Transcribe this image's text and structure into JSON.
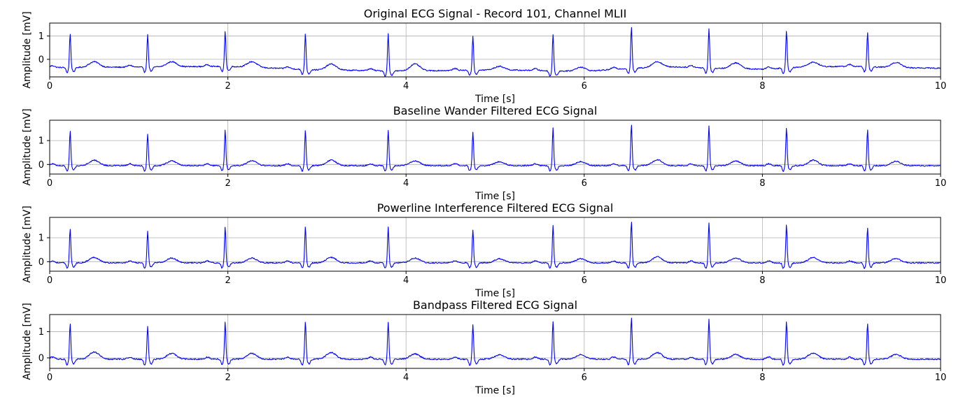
{
  "figure": {
    "line_color": "#0000ff",
    "grid_color": "#b0b0b0",
    "axes_color": "#000000"
  },
  "chart_data": [
    {
      "type": "line",
      "title": "Original ECG Signal - Record 101, Channel MLII",
      "xlabel": "Time [s]",
      "ylabel": "Amplitude [mV]",
      "xlim": [
        0,
        10
      ],
      "ylim": [
        -0.75,
        1.55
      ],
      "xticks": [
        0,
        2,
        4,
        6,
        8,
        10
      ],
      "yticks": [
        0,
        1
      ],
      "grid": true,
      "baseline": [
        [
          0,
          -0.35
        ],
        [
          1,
          -0.33
        ],
        [
          2,
          -0.3
        ],
        [
          3,
          -0.45
        ],
        [
          4,
          -0.5
        ],
        [
          5,
          -0.45
        ],
        [
          5.5,
          -0.48
        ],
        [
          6,
          -0.52
        ],
        [
          6.5,
          -0.38
        ],
        [
          7,
          -0.32
        ],
        [
          7.5,
          -0.38
        ],
        [
          8,
          -0.42
        ],
        [
          8.5,
          -0.32
        ],
        [
          9,
          -0.3
        ],
        [
          9.5,
          -0.35
        ],
        [
          10,
          -0.38
        ]
      ],
      "series": [
        {
          "r_peaks": [
            [
              0.23,
              1.1
            ],
            [
              1.1,
              1.05
            ],
            [
              1.97,
              1.2
            ],
            [
              2.87,
              1.1
            ],
            [
              3.8,
              1.1
            ],
            [
              4.75,
              1.0
            ],
            [
              5.65,
              1.07
            ],
            [
              6.53,
              1.38
            ],
            [
              7.4,
              1.32
            ],
            [
              8.27,
              1.25
            ],
            [
              9.18,
              1.15
            ]
          ],
          "t_waves": [
            [
              0.5,
              -0.1
            ],
            [
              1.37,
              -0.1
            ],
            [
              2.27,
              -0.1
            ],
            [
              3.16,
              -0.2
            ],
            [
              4.1,
              -0.2
            ],
            [
              5.05,
              -0.3
            ],
            [
              5.96,
              -0.33
            ],
            [
              6.82,
              -0.1
            ],
            [
              7.7,
              -0.15
            ],
            [
              8.57,
              -0.12
            ],
            [
              9.5,
              -0.13
            ]
          ]
        }
      ]
    },
    {
      "type": "line",
      "title": "Baseline Wander Filtered ECG Signal",
      "xlabel": "Time [s]",
      "ylabel": "Amplitude [mV]",
      "xlim": [
        0,
        10
      ],
      "ylim": [
        -0.4,
        1.85
      ],
      "xticks": [
        0,
        2,
        4,
        6,
        8,
        10
      ],
      "yticks": [
        0,
        1
      ],
      "grid": true,
      "baseline": [
        [
          0,
          -0.05
        ],
        [
          5,
          -0.05
        ],
        [
          10,
          -0.05
        ]
      ],
      "series": [
        {
          "r_peaks": [
            [
              0.23,
              1.4
            ],
            [
              1.1,
              1.3
            ],
            [
              1.97,
              1.45
            ],
            [
              2.87,
              1.45
            ],
            [
              3.8,
              1.45
            ],
            [
              4.75,
              1.35
            ],
            [
              5.65,
              1.52
            ],
            [
              6.53,
              1.7
            ],
            [
              7.4,
              1.62
            ],
            [
              8.27,
              1.55
            ],
            [
              9.18,
              1.45
            ]
          ],
          "t_waves": [
            [
              0.5,
              0.18
            ],
            [
              1.37,
              0.15
            ],
            [
              2.27,
              0.15
            ],
            [
              3.16,
              0.18
            ],
            [
              4.1,
              0.15
            ],
            [
              5.05,
              0.12
            ],
            [
              5.96,
              0.12
            ],
            [
              6.82,
              0.2
            ],
            [
              7.7,
              0.15
            ],
            [
              8.57,
              0.18
            ],
            [
              9.5,
              0.13
            ]
          ]
        }
      ]
    },
    {
      "type": "line",
      "title": "Powerline Interference Filtered ECG Signal",
      "xlabel": "Time [s]",
      "ylabel": "Amplitude [mV]",
      "xlim": [
        0,
        10
      ],
      "ylim": [
        -0.4,
        1.85
      ],
      "xticks": [
        0,
        2,
        4,
        6,
        8,
        10
      ],
      "yticks": [
        0,
        1
      ],
      "grid": true,
      "baseline": [
        [
          0,
          -0.05
        ],
        [
          5,
          -0.05
        ],
        [
          10,
          -0.05
        ]
      ],
      "series": [
        {
          "r_peaks": [
            [
              0.23,
              1.4
            ],
            [
              1.1,
              1.3
            ],
            [
              1.97,
              1.45
            ],
            [
              2.87,
              1.45
            ],
            [
              3.8,
              1.45
            ],
            [
              4.75,
              1.35
            ],
            [
              5.65,
              1.52
            ],
            [
              6.53,
              1.7
            ],
            [
              7.4,
              1.62
            ],
            [
              8.27,
              1.55
            ],
            [
              9.18,
              1.45
            ]
          ],
          "t_waves": [
            [
              0.5,
              0.18
            ],
            [
              1.37,
              0.15
            ],
            [
              2.27,
              0.15
            ],
            [
              3.16,
              0.18
            ],
            [
              4.1,
              0.15
            ],
            [
              5.05,
              0.12
            ],
            [
              5.96,
              0.12
            ],
            [
              6.82,
              0.2
            ],
            [
              7.7,
              0.15
            ],
            [
              8.57,
              0.18
            ],
            [
              9.5,
              0.13
            ]
          ]
        }
      ]
    },
    {
      "type": "line",
      "title": "Bandpass Filtered ECG Signal",
      "xlabel": "Time [s]",
      "ylabel": "Amplitude [mV]",
      "xlim": [
        0,
        10
      ],
      "ylim": [
        -0.4,
        1.65
      ],
      "xticks": [
        0,
        2,
        4,
        6,
        8,
        10
      ],
      "yticks": [
        0,
        1
      ],
      "grid": true,
      "baseline": [
        [
          0,
          -0.05
        ],
        [
          5,
          -0.05
        ],
        [
          10,
          -0.05
        ]
      ],
      "series": [
        {
          "r_peaks": [
            [
              0.23,
              1.32
            ],
            [
              1.1,
              1.22
            ],
            [
              1.97,
              1.37
            ],
            [
              2.87,
              1.38
            ],
            [
              3.8,
              1.38
            ],
            [
              4.75,
              1.28
            ],
            [
              5.65,
              1.4
            ],
            [
              6.53,
              1.55
            ],
            [
              7.4,
              1.47
            ],
            [
              8.27,
              1.42
            ],
            [
              9.18,
              1.33
            ]
          ],
          "t_waves": [
            [
              0.5,
              0.22
            ],
            [
              1.37,
              0.17
            ],
            [
              2.27,
              0.17
            ],
            [
              3.16,
              0.2
            ],
            [
              4.1,
              0.15
            ],
            [
              5.05,
              0.12
            ],
            [
              5.96,
              0.12
            ],
            [
              6.82,
              0.2
            ],
            [
              7.7,
              0.13
            ],
            [
              8.57,
              0.18
            ],
            [
              9.5,
              0.13
            ]
          ]
        }
      ]
    }
  ]
}
